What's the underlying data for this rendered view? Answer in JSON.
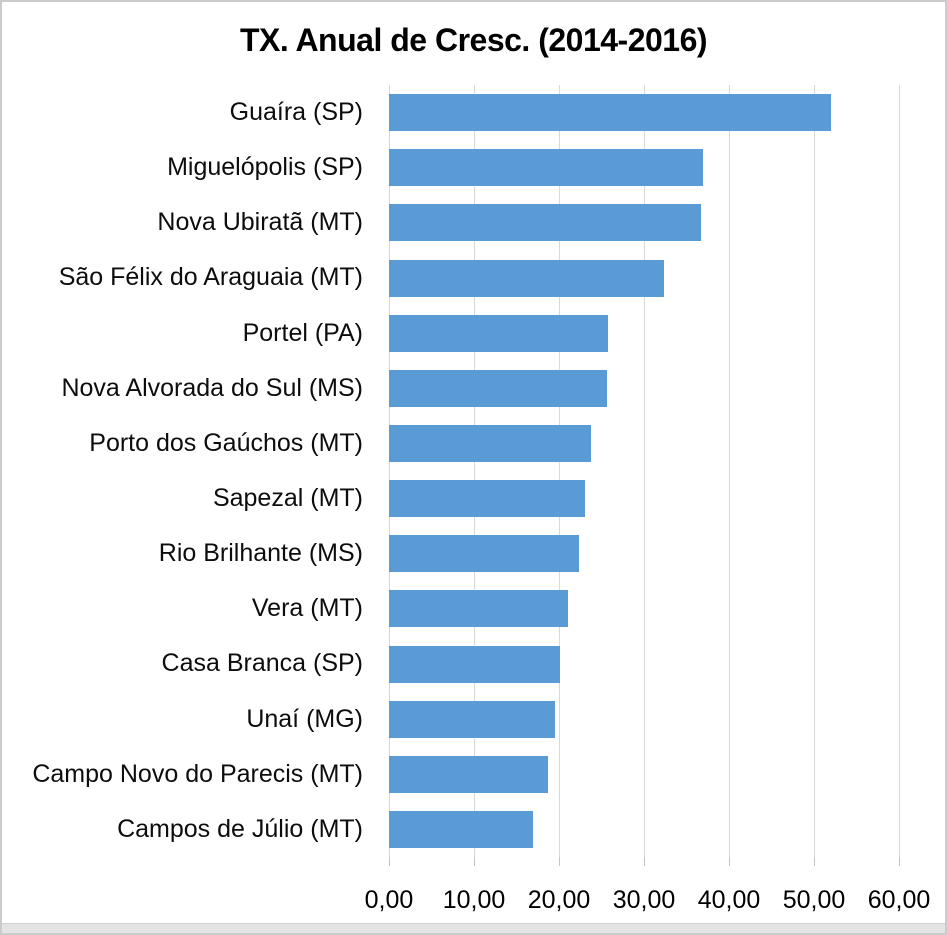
{
  "chart_data": {
    "type": "bar",
    "orientation": "horizontal",
    "title": "TX. Anual de Cresc. (2014-2016)",
    "categories": [
      "Guaíra (SP)",
      "Miguelópolis (SP)",
      "Nova Ubiratã (MT)",
      "São Félix do Araguaia (MT)",
      "Portel (PA)",
      "Nova Alvorada do Sul (MS)",
      "Porto dos Gaúchos (MT)",
      "Sapezal (MT)",
      "Rio Brilhante (MS)",
      "Vera (MT)",
      "Casa Branca (SP)",
      "Unaí (MG)",
      "Campo Novo do Parecis (MT)",
      "Campos de Júlio (MT)"
    ],
    "values": [
      52.0,
      36.9,
      36.7,
      32.4,
      25.8,
      25.7,
      23.8,
      23.1,
      22.3,
      21.0,
      20.1,
      19.5,
      18.7,
      16.9
    ],
    "x_ticks": [
      "0,00",
      "10,00",
      "20,00",
      "30,00",
      "40,00",
      "50,00",
      "60,00"
    ],
    "xlim": [
      0,
      60
    ],
    "xlabel": "",
    "ylabel": "",
    "grid": true,
    "legend": false,
    "colors": {
      "bar": "#5b9bd5",
      "gridline": "#d9d9d9",
      "text": "#0d0d0d",
      "title": "#000000"
    }
  }
}
